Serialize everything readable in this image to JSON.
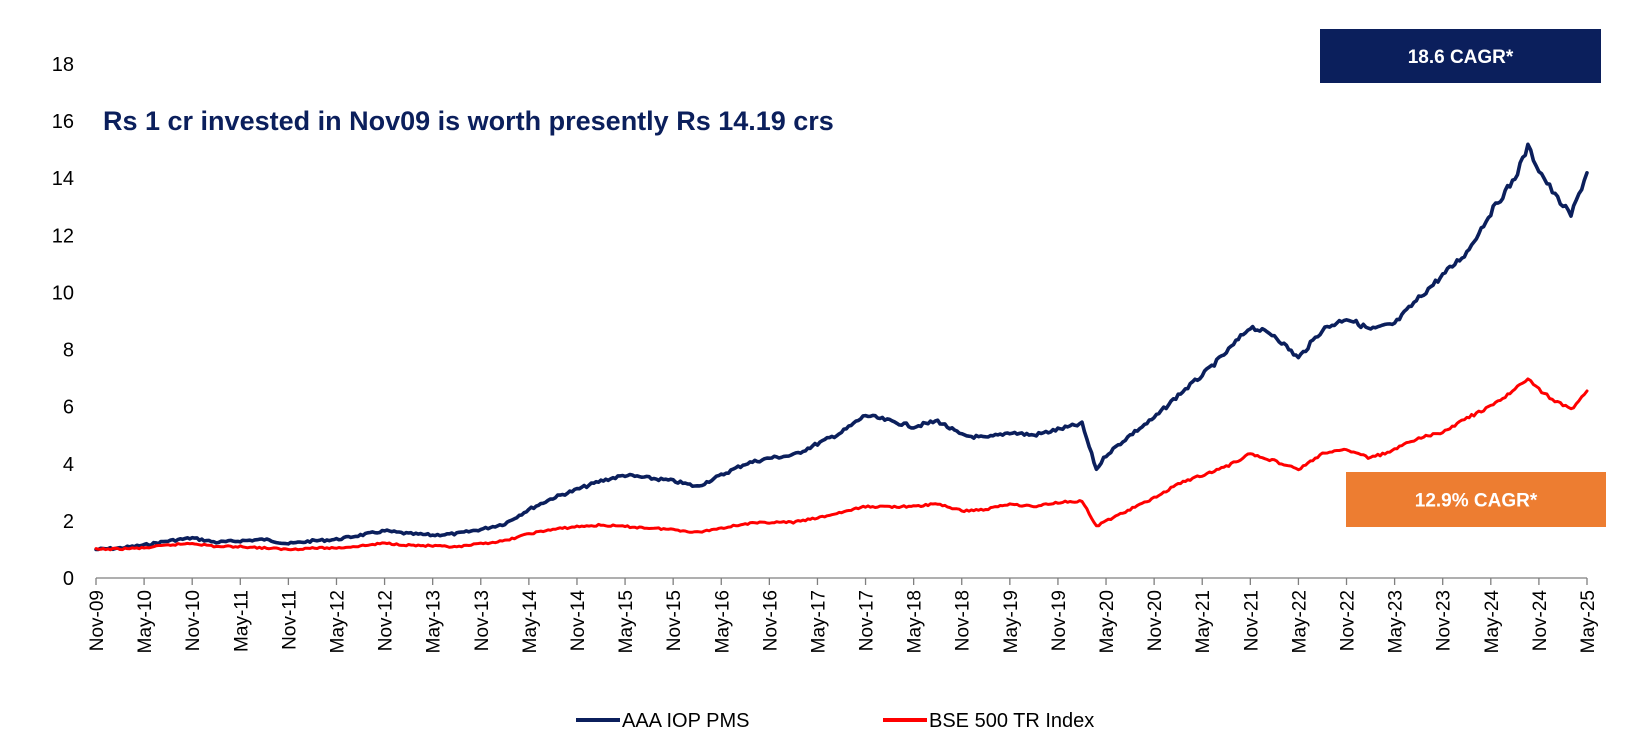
{
  "chart_data": {
    "type": "line",
    "title": "Rs 1 cr invested in Nov09 is worth presently Rs 14.19 crs",
    "xlabel": "",
    "ylabel": "",
    "ylim": [
      0,
      18
    ],
    "yticks": [
      "0",
      "2",
      "4",
      "6",
      "8",
      "10",
      "12",
      "14",
      "16",
      "18"
    ],
    "xticks": [
      "Nov-09",
      "May-10",
      "Nov-10",
      "May-11",
      "Nov-11",
      "May-12",
      "Nov-12",
      "May-13",
      "Nov-13",
      "May-14",
      "Nov-14",
      "May-15",
      "Nov-15",
      "May-16",
      "Nov-16",
      "May-17",
      "Nov-17",
      "May-18",
      "Nov-18",
      "May-19",
      "Nov-19",
      "May-20",
      "Nov-20",
      "May-21",
      "Nov-21",
      "May-22",
      "Nov-22",
      "May-23",
      "Nov-23",
      "May-24",
      "Nov-24",
      "May-25"
    ],
    "grid": false,
    "legend_position": "bottom",
    "annotations": [
      {
        "text": "18.6 CAGR*",
        "color": "#0B1F5C"
      },
      {
        "text": "12.9% CAGR*",
        "color": "#ED7D31"
      }
    ],
    "series": [
      {
        "name": "AAA IOP PMS",
        "color": "#0B1F5C",
        "x": [
          "2009-11-01",
          "2010-02-01",
          "2010-05-01",
          "2010-08-01",
          "2010-11-01",
          "2011-02-01",
          "2011-05-01",
          "2011-08-01",
          "2011-11-01",
          "2012-02-01",
          "2012-05-01",
          "2012-08-01",
          "2012-11-01",
          "2013-02-01",
          "2013-05-01",
          "2013-08-01",
          "2013-11-01",
          "2014-02-01",
          "2014-05-01",
          "2014-08-01",
          "2014-11-01",
          "2015-02-01",
          "2015-05-01",
          "2015-08-01",
          "2015-11-01",
          "2016-02-01",
          "2016-05-01",
          "2016-08-01",
          "2016-11-01",
          "2017-02-01",
          "2017-05-01",
          "2017-08-01",
          "2017-11-01",
          "2018-02-01",
          "2018-05-01",
          "2018-08-01",
          "2018-11-01",
          "2019-02-01",
          "2019-05-01",
          "2019-08-01",
          "2019-11-01",
          "2020-02-01",
          "2020-03-25",
          "2020-05-01",
          "2020-08-01",
          "2020-11-01",
          "2021-02-01",
          "2021-05-01",
          "2021-08-01",
          "2021-11-01",
          "2022-02-01",
          "2022-05-01",
          "2022-08-01",
          "2022-11-01",
          "2023-02-01",
          "2023-05-01",
          "2023-08-01",
          "2023-11-01",
          "2024-02-01",
          "2024-05-01",
          "2024-08-01",
          "2024-09-20",
          "2024-11-01",
          "2025-01-01",
          "2025-03-01",
          "2025-05-01"
        ],
        "values": [
          1.0,
          1.05,
          1.15,
          1.3,
          1.4,
          1.25,
          1.3,
          1.35,
          1.2,
          1.3,
          1.35,
          1.5,
          1.65,
          1.55,
          1.5,
          1.55,
          1.7,
          1.9,
          2.4,
          2.8,
          3.1,
          3.4,
          3.6,
          3.5,
          3.4,
          3.2,
          3.6,
          4.0,
          4.2,
          4.3,
          4.7,
          5.1,
          5.7,
          5.5,
          5.3,
          5.5,
          5.0,
          4.9,
          5.1,
          5.0,
          5.2,
          5.4,
          3.8,
          4.3,
          5.0,
          5.6,
          6.4,
          7.1,
          7.9,
          8.8,
          8.5,
          7.7,
          8.7,
          9.1,
          8.7,
          8.9,
          9.8,
          10.6,
          11.4,
          12.8,
          14.0,
          15.1,
          14.3,
          13.4,
          12.7,
          14.19
        ]
      },
      {
        "name": "BSE 500 TR Index",
        "color": "#FF0000",
        "x": [
          "2009-11-01",
          "2010-02-01",
          "2010-05-01",
          "2010-08-01",
          "2010-11-01",
          "2011-02-01",
          "2011-05-01",
          "2011-08-01",
          "2011-11-01",
          "2012-02-01",
          "2012-05-01",
          "2012-08-01",
          "2012-11-01",
          "2013-02-01",
          "2013-05-01",
          "2013-08-01",
          "2013-11-01",
          "2014-02-01",
          "2014-05-01",
          "2014-08-01",
          "2014-11-01",
          "2015-02-01",
          "2015-05-01",
          "2015-08-01",
          "2015-11-01",
          "2016-02-01",
          "2016-05-01",
          "2016-08-01",
          "2016-11-01",
          "2017-02-01",
          "2017-05-01",
          "2017-08-01",
          "2017-11-01",
          "2018-02-01",
          "2018-05-01",
          "2018-08-01",
          "2018-11-01",
          "2019-02-01",
          "2019-05-01",
          "2019-08-01",
          "2019-11-01",
          "2020-02-01",
          "2020-03-25",
          "2020-05-01",
          "2020-08-01",
          "2020-11-01",
          "2021-02-01",
          "2021-05-01",
          "2021-08-01",
          "2021-11-01",
          "2022-02-01",
          "2022-05-01",
          "2022-08-01",
          "2022-11-01",
          "2023-02-01",
          "2023-05-01",
          "2023-08-01",
          "2023-11-01",
          "2024-02-01",
          "2024-05-01",
          "2024-08-01",
          "2024-09-20",
          "2024-11-01",
          "2025-01-01",
          "2025-03-01",
          "2025-05-01"
        ],
        "values": [
          1.0,
          1.02,
          1.05,
          1.15,
          1.22,
          1.1,
          1.1,
          1.05,
          1.0,
          1.05,
          1.05,
          1.12,
          1.22,
          1.15,
          1.12,
          1.08,
          1.2,
          1.3,
          1.55,
          1.7,
          1.8,
          1.85,
          1.8,
          1.75,
          1.7,
          1.6,
          1.75,
          1.9,
          1.95,
          1.95,
          2.1,
          2.3,
          2.5,
          2.5,
          2.5,
          2.6,
          2.35,
          2.4,
          2.6,
          2.5,
          2.65,
          2.7,
          1.8,
          2.0,
          2.4,
          2.8,
          3.3,
          3.6,
          3.9,
          4.35,
          4.1,
          3.8,
          4.35,
          4.5,
          4.2,
          4.5,
          4.9,
          5.1,
          5.6,
          6.0,
          6.6,
          7.0,
          6.6,
          6.2,
          5.9,
          6.55
        ]
      }
    ]
  }
}
